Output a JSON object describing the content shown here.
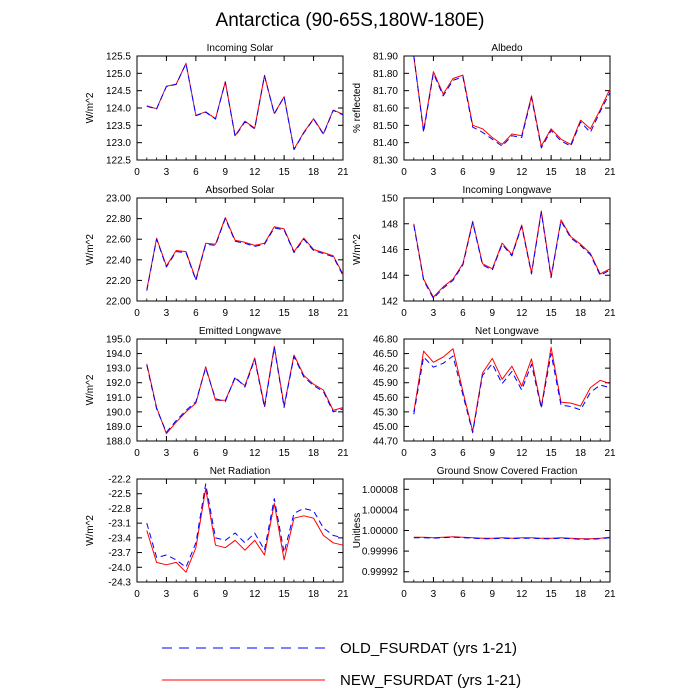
{
  "figure": {
    "title": "Antarctica (90-65S,180W-180E)",
    "line_colors": {
      "old": "#0000ff",
      "new": "#ff0000"
    }
  },
  "legend": {
    "entries": [
      {
        "label": "OLD_FSURDAT (yrs 1-21)",
        "color": "#0000ff",
        "style": "dashed"
      },
      {
        "label": "NEW_FSURDAT (yrs 1-21)",
        "color": "#ff0000",
        "style": "solid"
      }
    ]
  },
  "chart_data": [
    {
      "type": "line",
      "title": "Incoming Solar",
      "ylabel": "W/m^2",
      "xlabel": "",
      "x": [
        1,
        2,
        3,
        4,
        5,
        6,
        7,
        8,
        9,
        10,
        11,
        12,
        13,
        14,
        15,
        16,
        17,
        18,
        19,
        20,
        21
      ],
      "xlim": [
        0,
        21
      ],
      "ylim": [
        122.5,
        125.5
      ],
      "xticks": [
        "0",
        "3",
        "6",
        "9",
        "12",
        "15",
        "18",
        "21"
      ],
      "yticks": [
        "122.5",
        "123.0",
        "123.5",
        "124.0",
        "124.5",
        "125.0",
        "125.5"
      ],
      "series": [
        {
          "name": "OLD_FSURDAT (yrs 1-21)",
          "values": [
            124.05,
            123.97,
            124.62,
            124.68,
            125.28,
            123.78,
            123.88,
            123.68,
            124.75,
            123.18,
            123.6,
            123.4,
            124.93,
            123.83,
            124.32,
            122.8,
            123.28,
            123.68,
            123.24,
            123.93,
            123.8
          ]
        },
        {
          "name": "NEW_FSURDAT (yrs 1-21)",
          "values": [
            124.06,
            123.98,
            124.63,
            124.69,
            125.29,
            123.79,
            123.89,
            123.69,
            124.76,
            123.2,
            123.62,
            123.42,
            124.94,
            123.84,
            124.33,
            122.81,
            123.3,
            123.69,
            123.26,
            123.94,
            123.82
          ]
        }
      ]
    },
    {
      "type": "line",
      "title": "Albedo",
      "ylabel": "% reflected",
      "xlabel": "",
      "x": [
        1,
        2,
        3,
        4,
        5,
        6,
        7,
        8,
        9,
        10,
        11,
        12,
        13,
        14,
        15,
        16,
        17,
        18,
        19,
        20,
        21
      ],
      "xlim": [
        0,
        21
      ],
      "ylim": [
        81.3,
        81.9
      ],
      "xticks": [
        "0",
        "3",
        "6",
        "9",
        "12",
        "15",
        "18",
        "21"
      ],
      "yticks": [
        "81.30",
        "81.40",
        "81.50",
        "81.60",
        "81.70",
        "81.80",
        "81.90"
      ],
      "series": [
        {
          "name": "OLD_FSURDAT (yrs 1-21)",
          "values": [
            81.9,
            81.46,
            81.8,
            81.67,
            81.76,
            81.78,
            81.49,
            81.46,
            81.42,
            81.38,
            81.44,
            81.43,
            81.66,
            81.37,
            81.47,
            81.41,
            81.38,
            81.52,
            81.46,
            81.58,
            81.69
          ]
        },
        {
          "name": "NEW_FSURDAT (yrs 1-21)",
          "values": [
            81.9,
            81.47,
            81.81,
            81.68,
            81.77,
            81.79,
            81.5,
            81.48,
            81.43,
            81.39,
            81.45,
            81.44,
            81.67,
            81.38,
            81.48,
            81.42,
            81.39,
            81.53,
            81.48,
            81.59,
            81.71
          ]
        }
      ]
    },
    {
      "type": "line",
      "title": "Absorbed Solar",
      "ylabel": "W/m^2",
      "xlabel": "",
      "x": [
        1,
        2,
        3,
        4,
        5,
        6,
        7,
        8,
        9,
        10,
        11,
        12,
        13,
        14,
        15,
        16,
        17,
        18,
        19,
        20,
        21
      ],
      "xlim": [
        0,
        21
      ],
      "ylim": [
        22.0,
        23.0
      ],
      "xticks": [
        "0",
        "3",
        "6",
        "9",
        "12",
        "15",
        "18",
        "21"
      ],
      "yticks": [
        "22.00",
        "22.20",
        "22.40",
        "22.60",
        "22.80",
        "23.00"
      ],
      "series": [
        {
          "name": "OLD_FSURDAT (yrs 1-21)",
          "values": [
            22.1,
            22.6,
            22.33,
            22.48,
            22.47,
            22.2,
            22.55,
            22.54,
            22.8,
            22.58,
            22.56,
            22.53,
            22.55,
            22.71,
            22.69,
            22.47,
            22.6,
            22.49,
            22.46,
            22.43,
            22.25
          ]
        },
        {
          "name": "NEW_FSURDAT (yrs 1-21)",
          "values": [
            22.11,
            22.61,
            22.34,
            22.49,
            22.48,
            22.21,
            22.56,
            22.55,
            22.81,
            22.59,
            22.57,
            22.54,
            22.56,
            22.72,
            22.7,
            22.48,
            22.61,
            22.5,
            22.47,
            22.44,
            22.26
          ]
        }
      ]
    },
    {
      "type": "line",
      "title": "Incoming Longwave",
      "ylabel": "W/m^2",
      "xlabel": "",
      "x": [
        1,
        2,
        3,
        4,
        5,
        6,
        7,
        8,
        9,
        10,
        11,
        12,
        13,
        14,
        15,
        16,
        17,
        18,
        19,
        20,
        21
      ],
      "xlim": [
        0,
        21
      ],
      "ylim": [
        142,
        150
      ],
      "xticks": [
        "0",
        "3",
        "6",
        "9",
        "12",
        "15",
        "18",
        "21"
      ],
      "yticks": [
        "142",
        "144",
        "146",
        "148",
        "150"
      ],
      "series": [
        {
          "name": "OLD_FSURDAT (yrs 1-21)",
          "values": [
            147.9,
            143.6,
            142.2,
            143.0,
            143.6,
            144.8,
            148.1,
            144.8,
            144.4,
            146.4,
            145.5,
            147.8,
            144.1,
            148.9,
            143.8,
            148.2,
            146.9,
            146.3,
            145.6,
            144.0,
            144.4
          ]
        },
        {
          "name": "NEW_FSURDAT (yrs 1-21)",
          "values": [
            148.0,
            143.7,
            142.3,
            143.1,
            143.7,
            144.9,
            148.2,
            144.9,
            144.5,
            146.5,
            145.6,
            147.9,
            144.2,
            149.0,
            143.9,
            148.3,
            147.0,
            146.4,
            145.7,
            144.1,
            144.5
          ]
        }
      ]
    },
    {
      "type": "line",
      "title": "Emitted Longwave",
      "ylabel": "W/m^2",
      "xlabel": "",
      "x": [
        1,
        2,
        3,
        4,
        5,
        6,
        7,
        8,
        9,
        10,
        11,
        12,
        13,
        14,
        15,
        16,
        17,
        18,
        19,
        20,
        21
      ],
      "xlim": [
        0,
        21
      ],
      "ylim": [
        188.0,
        195.0
      ],
      "xticks": [
        "0",
        "3",
        "6",
        "9",
        "12",
        "15",
        "18",
        "21"
      ],
      "yticks": [
        "188.0",
        "189.0",
        "190.0",
        "191.0",
        "192.0",
        "193.0",
        "194.0",
        "195.0"
      ],
      "series": [
        {
          "name": "OLD_FSURDAT (yrs 1-21)",
          "values": [
            193.2,
            190.2,
            188.6,
            189.4,
            190.1,
            190.7,
            193.0,
            190.9,
            190.7,
            192.4,
            191.7,
            193.6,
            190.3,
            194.4,
            190.3,
            193.8,
            192.4,
            191.8,
            191.4,
            190.0,
            190.2
          ]
        },
        {
          "name": "NEW_FSURDAT (yrs 1-21)",
          "values": [
            193.3,
            190.3,
            188.5,
            189.3,
            190.0,
            190.6,
            193.1,
            190.8,
            190.8,
            192.3,
            191.8,
            193.7,
            190.4,
            194.5,
            190.4,
            193.9,
            192.5,
            191.9,
            191.5,
            190.1,
            190.3
          ]
        }
      ]
    },
    {
      "type": "line",
      "title": "Net Longwave",
      "ylabel": "",
      "xlabel": "",
      "x": [
        1,
        2,
        3,
        4,
        5,
        6,
        7,
        8,
        9,
        10,
        11,
        12,
        13,
        14,
        15,
        16,
        17,
        18,
        19,
        20,
        21
      ],
      "xlim": [
        0,
        21
      ],
      "ylim": [
        44.7,
        46.8
      ],
      "xticks": [
        "0",
        "3",
        "6",
        "9",
        "12",
        "15",
        "18",
        "21"
      ],
      "yticks": [
        "44.70",
        "45.00",
        "45.30",
        "45.60",
        "45.90",
        "46.20",
        "46.50",
        "46.80"
      ],
      "series": [
        {
          "name": "OLD_FSURDAT (yrs 1-21)",
          "values": [
            45.25,
            46.43,
            46.22,
            46.3,
            46.45,
            45.65,
            44.87,
            46.05,
            46.29,
            45.88,
            46.13,
            45.75,
            46.28,
            45.38,
            46.5,
            45.44,
            45.41,
            45.34,
            45.7,
            45.85,
            45.8
          ]
        },
        {
          "name": "NEW_FSURDAT (yrs 1-21)",
          "values": [
            45.3,
            46.55,
            46.32,
            46.43,
            46.6,
            45.72,
            44.9,
            46.1,
            46.4,
            45.97,
            46.24,
            45.83,
            46.39,
            45.4,
            46.63,
            45.5,
            45.48,
            45.42,
            45.8,
            45.95,
            45.88
          ]
        }
      ]
    },
    {
      "type": "line",
      "title": "Net Radiation",
      "ylabel": "W/m^2",
      "xlabel": "",
      "x": [
        1,
        2,
        3,
        4,
        5,
        6,
        7,
        8,
        9,
        10,
        11,
        12,
        13,
        14,
        15,
        16,
        17,
        18,
        19,
        20,
        21
      ],
      "xlim": [
        0,
        21
      ],
      "ylim": [
        -24.3,
        -22.2
      ],
      "xticks": [
        "0",
        "3",
        "6",
        "9",
        "12",
        "15",
        "18",
        "21"
      ],
      "yticks": [
        "-22.2",
        "-22.5",
        "-22.8",
        "-23.1",
        "-23.4",
        "-23.7",
        "-24.0",
        "-24.3"
      ],
      "series": [
        {
          "name": "OLD_FSURDAT (yrs 1-21)",
          "values": [
            -23.1,
            -23.8,
            -23.75,
            -23.85,
            -24.0,
            -23.5,
            -22.3,
            -23.4,
            -23.45,
            -23.3,
            -23.5,
            -23.3,
            -23.65,
            -22.6,
            -23.7,
            -22.9,
            -22.8,
            -22.85,
            -23.2,
            -23.35,
            -23.4
          ]
        },
        {
          "name": "NEW_FSURDAT (yrs 1-21)",
          "values": [
            -23.25,
            -23.9,
            -23.95,
            -23.9,
            -24.1,
            -23.6,
            -22.4,
            -23.55,
            -23.6,
            -23.45,
            -23.65,
            -23.45,
            -23.75,
            -22.7,
            -23.85,
            -23.0,
            -22.95,
            -23.0,
            -23.35,
            -23.5,
            -23.55
          ]
        }
      ]
    },
    {
      "type": "line",
      "title": "Ground Snow Covered Fraction",
      "ylabel": "Unitless",
      "xlabel": "",
      "x": [
        1,
        2,
        3,
        4,
        5,
        6,
        7,
        8,
        9,
        10,
        11,
        12,
        13,
        14,
        15,
        16,
        17,
        18,
        19,
        20,
        21
      ],
      "xlim": [
        0,
        21
      ],
      "ylim": [
        0.9999,
        1.0001
      ],
      "xticks": [
        "0",
        "3",
        "6",
        "9",
        "12",
        "15",
        "18",
        "21"
      ],
      "yticks": [
        "0.99992",
        "0.99996",
        "1.00000",
        "1.00004",
        "1.00008"
      ],
      "series": [
        {
          "name": "OLD_FSURDAT (yrs 1-21)",
          "values": [
            0.999986,
            0.999986,
            0.999985,
            0.999986,
            0.999987,
            0.999986,
            0.999985,
            0.999984,
            0.999984,
            0.999985,
            0.999984,
            0.999985,
            0.999985,
            0.999984,
            0.999984,
            0.999985,
            0.999984,
            0.999983,
            0.999983,
            0.999984,
            0.999986
          ]
        },
        {
          "name": "NEW_FSURDAT (yrs 1-21)",
          "values": [
            0.999987,
            0.999987,
            0.999986,
            0.999987,
            0.999988,
            0.999987,
            0.999986,
            0.999985,
            0.999985,
            0.999986,
            0.999985,
            0.999986,
            0.999986,
            0.999985,
            0.999985,
            0.999986,
            0.999985,
            0.999984,
            0.999984,
            0.999985,
            0.999987
          ]
        }
      ]
    }
  ]
}
